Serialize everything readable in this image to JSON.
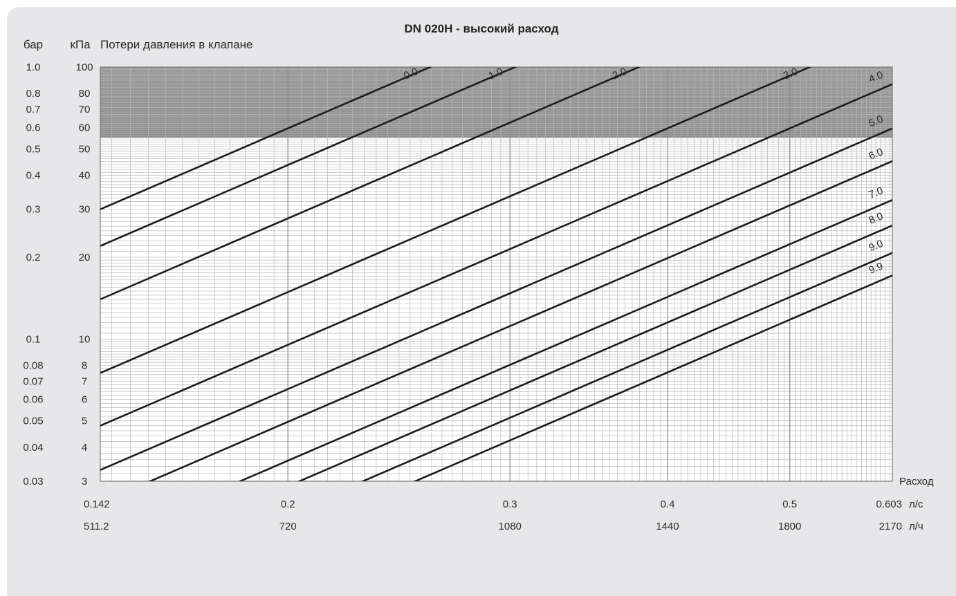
{
  "chart_data": {
    "type": "line",
    "title": "DN 020H - высокий расход",
    "ylabel_bar": "бар",
    "ylabel_kpa": "кПа",
    "ylabel": "Потери давления в клапане",
    "xlabel": "Расход",
    "x_scale": "log",
    "y_scale": "log",
    "xlim": [
      0.142,
      0.603
    ],
    "ylim_kpa": [
      3,
      100
    ],
    "shaded_zone_above_kpa": 55,
    "x_ticks_ls": [
      "0.142",
      "0.2",
      "0.3",
      "0.4",
      "0.5",
      "0.603"
    ],
    "x_ticks_lh": [
      "511.2",
      "720",
      "1080",
      "1440",
      "1800",
      "2170"
    ],
    "x_unit_ls": "л/с",
    "x_unit_lh": "л/ч",
    "y_ticks": [
      {
        "kpa": 100,
        "bar": "1.0",
        "kpa_label": "100"
      },
      {
        "kpa": 80,
        "bar": "0.8",
        "kpa_label": "80"
      },
      {
        "kpa": 70,
        "bar": "0.7",
        "kpa_label": "70"
      },
      {
        "kpa": 60,
        "bar": "0.6",
        "kpa_label": "60"
      },
      {
        "kpa": 50,
        "bar": "0.5",
        "kpa_label": "50"
      },
      {
        "kpa": 40,
        "bar": "0.4",
        "kpa_label": "40"
      },
      {
        "kpa": 30,
        "bar": "0.3",
        "kpa_label": "30"
      },
      {
        "kpa": 20,
        "bar": "0.2",
        "kpa_label": "20"
      },
      {
        "kpa": 10,
        "bar": "0.1",
        "kpa_label": "10"
      },
      {
        "kpa": 8,
        "bar": "0.08",
        "kpa_label": "8"
      },
      {
        "kpa": 7,
        "bar": "0.07",
        "kpa_label": "7"
      },
      {
        "kpa": 6,
        "bar": "0.06",
        "kpa_label": "6"
      },
      {
        "kpa": 5,
        "bar": "0.05",
        "kpa_label": "5"
      },
      {
        "kpa": 4,
        "bar": "0.04",
        "kpa_label": "4"
      },
      {
        "kpa": 3,
        "bar": "0.03",
        "kpa_label": "3"
      }
    ],
    "series": [
      {
        "name": "0.0",
        "kpa_at_x_min": 30.0
      },
      {
        "name": "1.0",
        "kpa_at_x_min": 22.0
      },
      {
        "name": "2.0",
        "kpa_at_x_min": 14.0
      },
      {
        "name": "3.0",
        "kpa_at_x_min": 7.5
      },
      {
        "name": "4.0",
        "kpa_at_x_min": 4.8
      },
      {
        "name": "5.0",
        "kpa_at_x_min": 3.3
      },
      {
        "name": "6.0",
        "kpa_at_x_min": 2.5
      },
      {
        "name": "7.0",
        "kpa_at_x_min": 1.8
      },
      {
        "name": "8.0",
        "kpa_at_x_min": 1.45
      },
      {
        "name": "9.0",
        "kpa_at_x_min": 1.15
      },
      {
        "name": "9.9",
        "kpa_at_x_min": 0.95
      }
    ],
    "colors": {
      "line": "#1c1c1c",
      "shade": "#8e8e8e",
      "grid_minor": "#b8b8b8",
      "grid_major": "#8a8a8a",
      "plot_bg": "#ffffff",
      "card_bg": "#e7e7e9"
    }
  }
}
